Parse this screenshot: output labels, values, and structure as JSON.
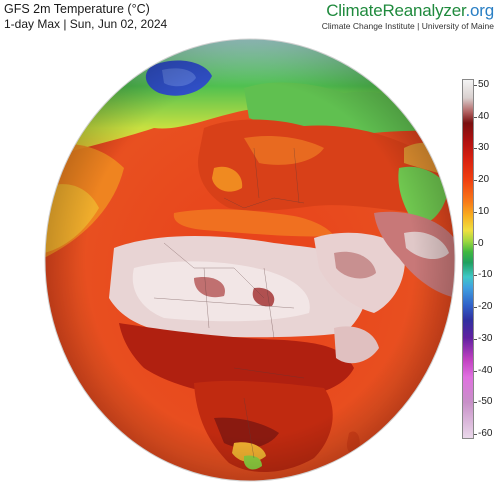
{
  "header": {
    "title": "GFS 2m Temperature (°C)",
    "subtitle": "1-day Max | Sun, Jun 02, 2024"
  },
  "brand": {
    "name_main": "ClimateReanalyzer",
    "name_tld": ".org",
    "subtitle": "Climate Change Institute | University of Maine"
  },
  "legend": {
    "ticks": [
      "50",
      "40",
      "30",
      "20",
      "10",
      "0",
      "-10",
      "-20",
      "-30",
      "-40",
      "-50",
      "-60"
    ],
    "min": -60,
    "max": 50,
    "colors": {
      "hot_extreme": "#f4f4f4",
      "hot": "#b01010",
      "warm": "#f04010",
      "mild": "#f8b020",
      "cool": "#40b840",
      "freezing": "#40a0e0",
      "cold": "#3030a0",
      "very_cold": "#c040c0",
      "extreme_cold": "#ead8ea"
    }
  },
  "map": {
    "projection": "orthographic globe",
    "region": "Europe and Africa"
  }
}
